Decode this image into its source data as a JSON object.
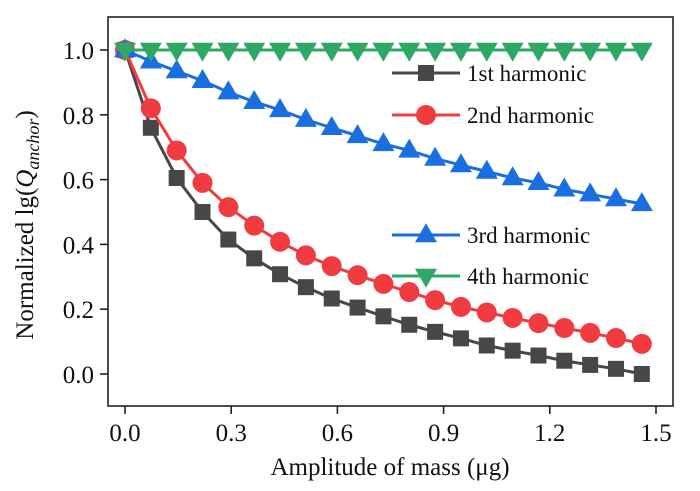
{
  "chart_data": {
    "type": "line",
    "title": "",
    "xlabel": "Amplitude of mass (μg)",
    "ylabel": {
      "prefix": "Normalized lg(",
      "symbol": "Q",
      "subscript": "anchor",
      "suffix": ")"
    },
    "xlim": [
      -0.05,
      1.55
    ],
    "ylim": [
      -0.1,
      1.1
    ],
    "xticks": [
      0.0,
      0.3,
      0.6,
      0.9,
      1.2,
      1.5
    ],
    "xtick_labels": [
      "0.0",
      "0.3",
      "0.6",
      "0.9",
      "1.2",
      "1.5"
    ],
    "yticks": [
      0.0,
      0.2,
      0.4,
      0.6,
      0.8,
      1.0
    ],
    "ytick_labels": [
      "0.0",
      "0.2",
      "0.4",
      "0.6",
      "0.8",
      "1.0"
    ],
    "grid": false,
    "legend_position": "top-right (split: two entries top, two entries middle)",
    "x": [
      0.0,
      0.073,
      0.146,
      0.219,
      0.292,
      0.365,
      0.438,
      0.511,
      0.584,
      0.657,
      0.73,
      0.803,
      0.876,
      0.949,
      1.022,
      1.095,
      1.168,
      1.241,
      1.314,
      1.387,
      1.46
    ],
    "series": [
      {
        "name": "1st harmonic",
        "marker": "square",
        "color": "#474747",
        "values": [
          1.0,
          0.76,
          0.605,
          0.5,
          0.415,
          0.357,
          0.308,
          0.268,
          0.233,
          0.205,
          0.178,
          0.152,
          0.13,
          0.11,
          0.088,
          0.072,
          0.057,
          0.041,
          0.028,
          0.016,
          0.0
        ]
      },
      {
        "name": "2nd harmonic",
        "marker": "circle",
        "color": "#f03c40",
        "values": [
          1.0,
          0.82,
          0.69,
          0.59,
          0.515,
          0.458,
          0.408,
          0.366,
          0.333,
          0.305,
          0.278,
          0.253,
          0.228,
          0.207,
          0.19,
          0.173,
          0.157,
          0.142,
          0.127,
          0.111,
          0.093
        ]
      },
      {
        "name": "3rd harmonic",
        "marker": "triangle-up",
        "color": "#1a6fe0",
        "values": [
          1.0,
          0.965,
          0.935,
          0.905,
          0.87,
          0.84,
          0.815,
          0.785,
          0.76,
          0.735,
          0.71,
          0.69,
          0.665,
          0.645,
          0.625,
          0.605,
          0.59,
          0.57,
          0.555,
          0.54,
          0.525
        ]
      },
      {
        "name": "4th harmonic",
        "marker": "triangle-down",
        "color": "#2fa866",
        "values": [
          1.0,
          1.0,
          1.0,
          1.0,
          1.0,
          1.0,
          1.0,
          1.0,
          1.0,
          1.0,
          1.0,
          1.0,
          1.0,
          1.0,
          1.0,
          1.0,
          1.0,
          1.0,
          1.0,
          1.0,
          1.0
        ]
      }
    ]
  }
}
